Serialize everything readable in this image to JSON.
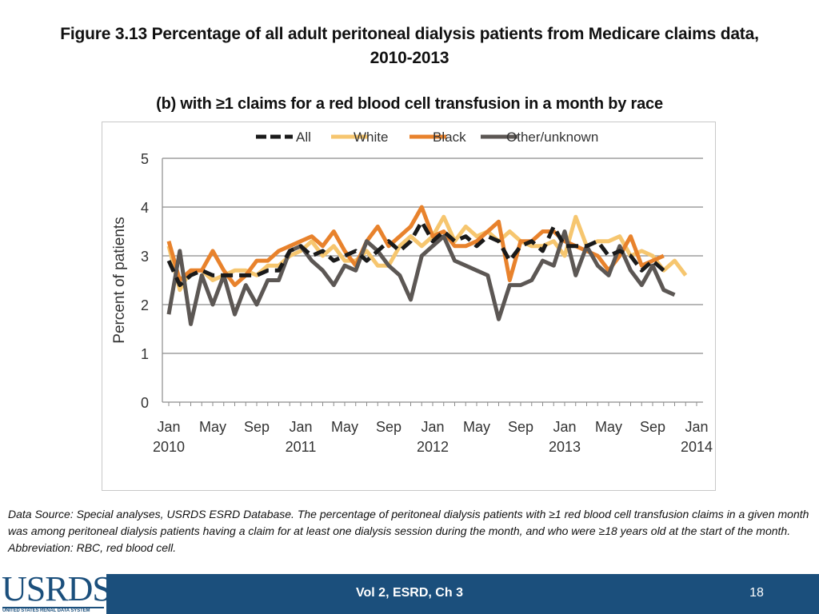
{
  "title": "Figure 3.13 Percentage of all adult peritoneal dialysis patients from Medicare claims data, 2010-2013",
  "subtitle": "(b) with ≥1 claims for a red blood cell transfusion in a month by race",
  "footnote": "Data Source: Special analyses, USRDS ESRD Database. The percentage of peritoneal dialysis patients with ≥1 red blood cell transfusion claims in a given month was among peritoneal dialysis patients having a claim for at least one dialysis session during the month, and who were ≥18 years old at the start of the month. Abbreviation: RBC, red blood cell.",
  "footer": {
    "label": "Vol 2, ESRD, Ch 3",
    "page": "18"
  },
  "logo": {
    "text": "USRDS",
    "subtitle": "UNITED STATES RENAL DATA SYSTEM"
  },
  "colors": {
    "all": "#1a1a1a",
    "white": "#f6c66f",
    "black": "#e8822c",
    "other": "#5c5754",
    "grid": "#8c8c8c",
    "footer": "#1b4f7c"
  },
  "chart_data": {
    "type": "line",
    "xlabel": "",
    "ylabel": "Percent of patients",
    "ylim": [
      0,
      5
    ],
    "yticks": [
      0,
      1,
      2,
      3,
      4,
      5
    ],
    "xlim": [
      0,
      48
    ],
    "grid": "horizontal",
    "legend_position": "top",
    "xticks": [
      {
        "x": 0,
        "line1": "Jan",
        "line2": "2010"
      },
      {
        "x": 4,
        "line1": "May",
        "line2": ""
      },
      {
        "x": 8,
        "line1": "Sep",
        "line2": ""
      },
      {
        "x": 12,
        "line1": "Jan",
        "line2": "2011"
      },
      {
        "x": 16,
        "line1": "May",
        "line2": ""
      },
      {
        "x": 20,
        "line1": "Sep",
        "line2": ""
      },
      {
        "x": 24,
        "line1": "Jan",
        "line2": "2012"
      },
      {
        "x": 28,
        "line1": "May",
        "line2": ""
      },
      {
        "x": 32,
        "line1": "Sep",
        "line2": ""
      },
      {
        "x": 36,
        "line1": "Jan",
        "line2": "2013"
      },
      {
        "x": 40,
        "line1": "May",
        "line2": ""
      },
      {
        "x": 44,
        "line1": "Sep",
        "line2": ""
      },
      {
        "x": 48,
        "line1": "Jan",
        "line2": "2014"
      }
    ],
    "series": [
      {
        "name": "White",
        "key": "white",
        "dash": false,
        "values": [
          3.2,
          2.3,
          2.7,
          2.7,
          2.5,
          2.6,
          2.7,
          2.7,
          2.6,
          2.8,
          2.8,
          3.0,
          3.1,
          3.3,
          3.0,
          3.2,
          2.9,
          2.9,
          3.1,
          2.8,
          2.8,
          3.2,
          3.4,
          3.2,
          3.4,
          3.8,
          3.3,
          3.6,
          3.4,
          3.5,
          3.3,
          3.5,
          3.3,
          3.2,
          3.2,
          3.3,
          3.0,
          3.8,
          3.2,
          3.3,
          3.3,
          3.4,
          3.0,
          3.1,
          3.0,
          2.7,
          2.9,
          2.6
        ]
      },
      {
        "name": "Black",
        "key": "black",
        "dash": false,
        "values": [
          3.3,
          2.5,
          2.7,
          2.7,
          3.1,
          2.7,
          2.4,
          2.6,
          2.9,
          2.9,
          3.1,
          3.2,
          3.3,
          3.4,
          3.2,
          3.5,
          3.1,
          2.8,
          3.3,
          3.6,
          3.2,
          3.4,
          3.6,
          4.0,
          3.4,
          3.5,
          3.2,
          3.2,
          3.3,
          3.5,
          3.7,
          2.5,
          3.3,
          3.3,
          3.5,
          3.5,
          3.3,
          3.2,
          3.1,
          3.0,
          2.7,
          3.0,
          3.4,
          2.8,
          2.9,
          3.0
        ]
      },
      {
        "name": "Other/unknown",
        "key": "other",
        "dash": false,
        "values": [
          1.8,
          3.1,
          1.6,
          2.6,
          2.0,
          2.6,
          1.8,
          2.4,
          2.0,
          2.5,
          2.5,
          3.1,
          3.2,
          2.9,
          2.7,
          2.4,
          2.8,
          2.7,
          3.3,
          3.1,
          2.8,
          2.6,
          2.1,
          3.0,
          3.2,
          3.4,
          2.9,
          2.8,
          2.7,
          2.6,
          1.7,
          2.4,
          2.4,
          2.5,
          2.9,
          2.8,
          3.5,
          2.6,
          3.2,
          2.8,
          2.6,
          3.2,
          2.7,
          2.4,
          2.8,
          2.3,
          2.2
        ]
      },
      {
        "name": "All",
        "key": "all",
        "dash": true,
        "values": [
          2.9,
          2.4,
          2.6,
          2.7,
          2.6,
          2.6,
          2.6,
          2.6,
          2.6,
          2.7,
          2.7,
          3.1,
          3.2,
          3.0,
          3.1,
          2.9,
          3.0,
          3.1,
          2.9,
          3.1,
          3.3,
          3.1,
          3.3,
          3.7,
          3.3,
          3.5,
          3.3,
          3.4,
          3.2,
          3.4,
          3.3,
          2.9,
          3.2,
          3.3,
          3.1,
          3.6,
          3.2,
          3.2,
          3.2,
          3.3,
          3.0,
          3.1,
          3.0,
          2.7,
          2.9,
          2.7
        ]
      }
    ],
    "legend": [
      {
        "name": "All",
        "key": "all",
        "dash": true
      },
      {
        "name": "White",
        "key": "white",
        "dash": false
      },
      {
        "name": "Black",
        "key": "black",
        "dash": false
      },
      {
        "name": "Other/unknown",
        "key": "other",
        "dash": false
      }
    ]
  }
}
